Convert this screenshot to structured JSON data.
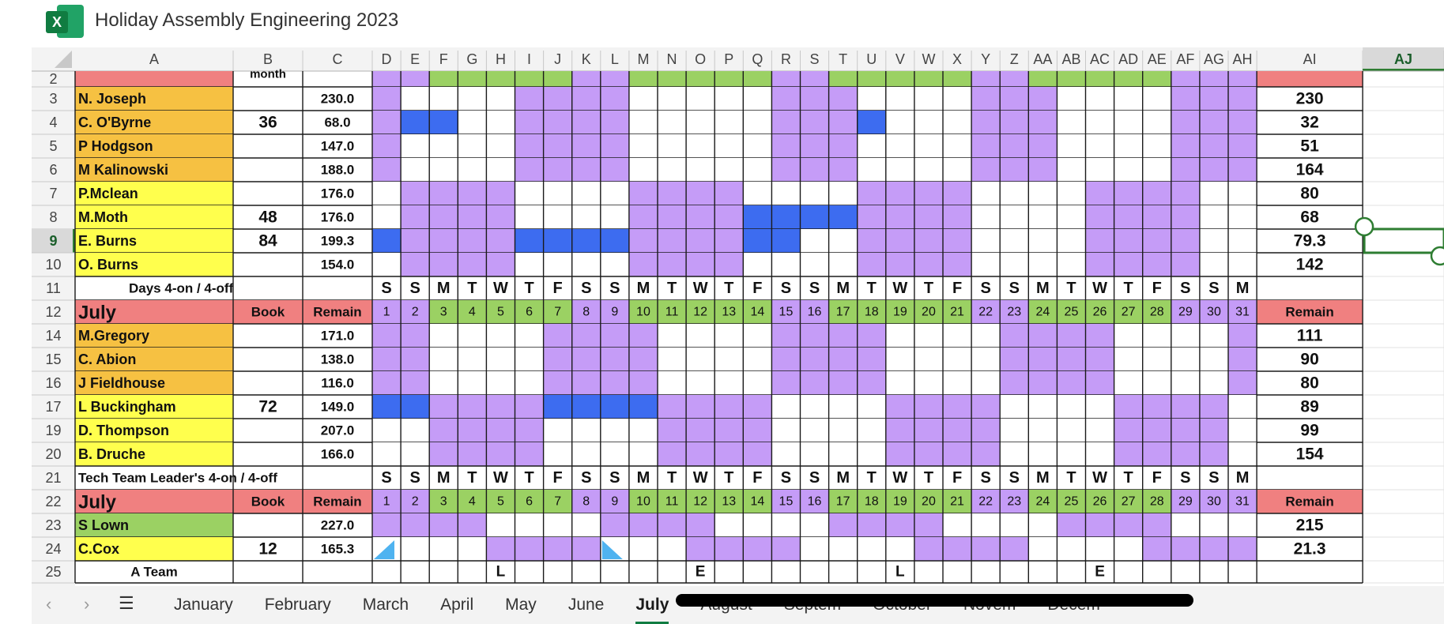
{
  "window": {
    "title": "Holiday Assembly Engineering 2023",
    "app_logo_letter": "X"
  },
  "columns": [
    "A",
    "B",
    "C",
    "D",
    "E",
    "F",
    "G",
    "H",
    "I",
    "J",
    "K",
    "L",
    "M",
    "N",
    "O",
    "P",
    "Q",
    "R",
    "S",
    "T",
    "U",
    "V",
    "W",
    "X",
    "Y",
    "Z",
    "AA",
    "AB",
    "AC",
    "AD",
    "AE",
    "AF",
    "AG",
    "AH",
    "AI",
    "AJ"
  ],
  "selected_column": "AJ",
  "selected_row": "9",
  "colors": {
    "orange": "#f6c142",
    "yellow": "#ffff4d",
    "green": "#9bd163",
    "red": "#f08080",
    "purple": "#c59cf7",
    "blue": "#3d6cf0",
    "white": "#ffffff",
    "selection": "#2e7d32"
  },
  "rows": [
    {
      "row": "2",
      "name": "",
      "name_color": "red",
      "book": "month",
      "remain": "",
      "days": "PPGGGGGPPGGGGGPPGGGGGPPGGGGGPPP",
      "total": "",
      "total_color": "red"
    },
    {
      "row": "3",
      "name": "N. Joseph",
      "name_color": "orange",
      "book": "",
      "remain": "230.0",
      "days": "PWWWWPPPPWWWWWPPPWWWWPPPWWWWPPP",
      "total": "230"
    },
    {
      "row": "4",
      "name": "C. O'Byrne",
      "name_color": "orange",
      "book": "36",
      "remain": "68.0",
      "days": "PBBWWPPPPWWWWWPPPBWWWPPPWWWWPPP",
      "total": "32"
    },
    {
      "row": "5",
      "name": "P Hodgson",
      "name_color": "orange",
      "book": "",
      "remain": "147.0",
      "days": "PWWWWPPPPWWWWWPPPWWWWPPPWWWWPPP",
      "total": "51"
    },
    {
      "row": "6",
      "name": "M Kalinowski",
      "name_color": "orange",
      "book": "",
      "remain": "188.0",
      "days": "PWWWWPPPPWWWWWPPPWWWWPPPWWWWPPP",
      "total": "164"
    },
    {
      "row": "7",
      "name": "P.Mclean",
      "name_color": "yellow",
      "book": "",
      "remain": "176.0",
      "days": "WPPPPWWWWPPPPWWWWPPPPWWWWPPPPWW",
      "total": "80"
    },
    {
      "row": "8",
      "name": "M.Moth",
      "name_color": "yellow",
      "book": "48",
      "remain": "176.0",
      "days": "WPPPPWWWWPPPPBBBBPPPPWWWWPPPPWW",
      "total": "68"
    },
    {
      "row": "9",
      "name": "E. Burns",
      "name_color": "yellow",
      "book": "84",
      "remain": "199.3",
      "days": "BPPPPBBBBPPPPBBWWPPPPWWWWPPPPWW",
      "total": "79.3"
    },
    {
      "row": "10",
      "name": "O. Burns",
      "name_color": "yellow",
      "book": "",
      "remain": "154.0",
      "days": "WPPPPWWWWPPPPWWWWPPPPWWWWPPPPWW",
      "total": "142"
    },
    {
      "row": "11",
      "type": "weekday",
      "label": "Days 4-on / 4-off"
    },
    {
      "row": "12",
      "type": "header",
      "month": "July",
      "book_label": "Book",
      "remain_label": "Remain",
      "total_label": "Remain"
    },
    {
      "row": "14",
      "name": "M.Gregory",
      "name_color": "orange",
      "book": "",
      "remain": "171.0",
      "days": "PPWWWWPPPPWWWWPPPPWWWWPPPPWWWWP",
      "total": "111"
    },
    {
      "row": "15",
      "name": "C. Abion",
      "name_color": "orange",
      "book": "",
      "remain": "138.0",
      "days": "PPWWWWPPPPWWWWPPPPWWWWPPPPWWWWP",
      "total": "90"
    },
    {
      "row": "16",
      "name": "J Fieldhouse",
      "name_color": "orange",
      "book": "",
      "remain": "116.0",
      "days": "PPWWWWPPPPWWWWPPPPWWWWPPPPWWWWP",
      "total": "80"
    },
    {
      "row": "17",
      "name": "L  Buckingham",
      "name_color": "yellow",
      "book": "72",
      "remain": "149.0",
      "days": "BBPPPPBBBBPPPPWWWWPPPPWWWWPPPPW",
      "total": "89"
    },
    {
      "row": "19",
      "name": "D. Thompson",
      "name_color": "yellow",
      "book": "",
      "remain": "207.0",
      "days": "WWPPPPWWWWPPPPWWWWPPPPWWWWPPPPW",
      "total": "99"
    },
    {
      "row": "20",
      "name": "B. Druche",
      "name_color": "yellow",
      "book": "",
      "remain": "166.0",
      "days": "WWPPPPWWWWPPPPWWWWPPPPWWWWPPPPW",
      "total": "154"
    },
    {
      "row": "21",
      "type": "weekday",
      "label": "Tech Team Leader's  4-on / 4-off"
    },
    {
      "row": "22",
      "type": "header",
      "month": "July",
      "book_label": "Book",
      "remain_label": "Remain",
      "total_label": "Remain"
    },
    {
      "row": "23",
      "name": "S Lown",
      "name_color": "green",
      "book": "",
      "remain": "227.0",
      "days": "PPPPWWWWPPPPWWWWPPPPWWWWPPPPWWW",
      "total": "215"
    },
    {
      "row": "24",
      "name": "C.Cox",
      "name_color": "yellow",
      "book": "12",
      "remain": "165.3",
      "days": "WWWWPPPPWWWPPPPWWWWPPPPWWWWPPPP",
      "total": "21.3"
    },
    {
      "row": "25",
      "type": "team",
      "label": "A Team",
      "marks": [
        {
          "day": 5,
          "text": "L"
        },
        {
          "day": 12,
          "text": "E"
        },
        {
          "day": 19,
          "text": "L"
        },
        {
          "day": 26,
          "text": "E"
        }
      ]
    }
  ],
  "weekdays": [
    "S",
    "S",
    "M",
    "T",
    "W",
    "T",
    "F",
    "S",
    "S",
    "M",
    "T",
    "W",
    "T",
    "F",
    "S",
    "S",
    "M",
    "T",
    "W",
    "T",
    "F",
    "S",
    "S",
    "M",
    "T",
    "W",
    "T",
    "F",
    "S",
    "S",
    "M"
  ],
  "days": [
    "1",
    "2",
    "3",
    "4",
    "5",
    "6",
    "7",
    "8",
    "9",
    "10",
    "11",
    "12",
    "13",
    "14",
    "15",
    "16",
    "17",
    "18",
    "19",
    "20",
    "21",
    "22",
    "23",
    "24",
    "25",
    "26",
    "27",
    "28",
    "29",
    "30",
    "31"
  ],
  "day_header_colors": "PPGGGGGPPGGGGGPPGGGGGPPGGGGGPPP",
  "tabs": {
    "items": [
      "January",
      "February",
      "March",
      "April",
      "May",
      "June",
      "July",
      "August",
      "Septem",
      "October",
      "Novem",
      "Decem"
    ],
    "active": "July",
    "prev_icon": "‹",
    "next_icon": "›",
    "menu_icon": "☰"
  }
}
